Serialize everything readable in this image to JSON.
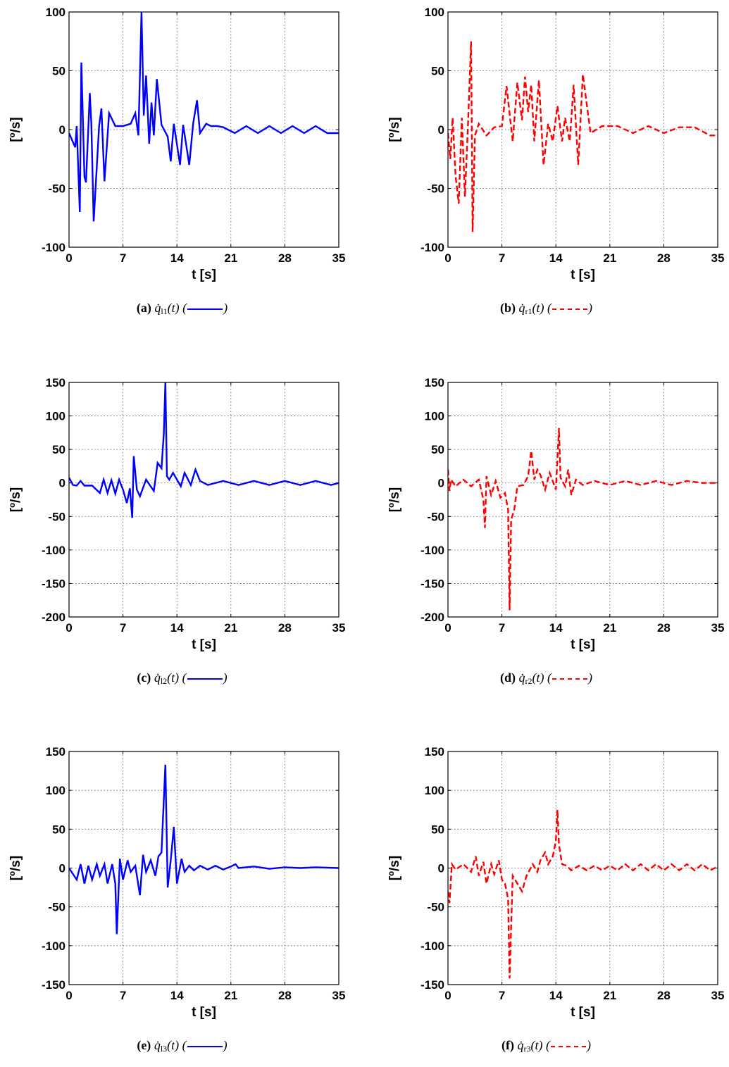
{
  "panels": [
    {
      "id": "a",
      "letter": "(a)",
      "sym": "q̇",
      "sub": "l1",
      "args": "(t)",
      "color": "#0000ff",
      "dashed": false,
      "xlabel": "t [s]",
      "ylabel": "[º/s]",
      "xticks": [
        "0",
        "7",
        "14",
        "21",
        "28",
        "35"
      ],
      "yticks": [
        "-100",
        "-50",
        "0",
        "50",
        "100"
      ]
    },
    {
      "id": "b",
      "letter": "(b)",
      "sym": "q̇",
      "sub": "r1",
      "args": "(t)",
      "color": "#ff0000",
      "dashed": true,
      "xlabel": "t [s]",
      "ylabel": "[º/s]",
      "xticks": [
        "0",
        "7",
        "14",
        "21",
        "28",
        "35"
      ],
      "yticks": [
        "-100",
        "-50",
        "0",
        "50",
        "100"
      ]
    },
    {
      "id": "c",
      "letter": "(c)",
      "sym": "q̇",
      "sub": "l2",
      "args": "(t)",
      "color": "#0000ff",
      "dashed": false,
      "xlabel": "t [s]",
      "ylabel": "[º/s]",
      "xticks": [
        "0",
        "7",
        "14",
        "21",
        "28",
        "35"
      ],
      "yticks": [
        "-200",
        "-150",
        "-100",
        "-50",
        "0",
        "50",
        "100",
        "150"
      ]
    },
    {
      "id": "d",
      "letter": "(d)",
      "sym": "q̇",
      "sub": "r2",
      "args": "(t)",
      "color": "#ff0000",
      "dashed": true,
      "xlabel": "t [s]",
      "ylabel": "[º/s]",
      "xticks": [
        "0",
        "7",
        "14",
        "21",
        "28",
        "35"
      ],
      "yticks": [
        "-200",
        "-150",
        "-100",
        "-50",
        "0",
        "50",
        "100",
        "150"
      ]
    },
    {
      "id": "e",
      "letter": "(e)",
      "sym": "q̇",
      "sub": "l3",
      "args": "(t)",
      "color": "#0000ff",
      "dashed": false,
      "xlabel": "t [s]",
      "ylabel": "[º/s]",
      "xticks": [
        "0",
        "7",
        "14",
        "21",
        "28",
        "35"
      ],
      "yticks": [
        "-150",
        "-100",
        "-50",
        "0",
        "50",
        "100",
        "150"
      ]
    },
    {
      "id": "f",
      "letter": "(f)",
      "sym": "q̇",
      "sub": "r3",
      "args": "(t)",
      "color": "#ff0000",
      "dashed": true,
      "xlabel": "t [s]",
      "ylabel": "[º/s]",
      "xticks": [
        "0",
        "7",
        "14",
        "21",
        "28",
        "35"
      ],
      "yticks": [
        "-150",
        "-100",
        "-50",
        "0",
        "50",
        "100",
        "150"
      ]
    }
  ],
  "chart_data": [
    {
      "type": "line",
      "xlim": [
        0,
        35
      ],
      "ylim": [
        -100,
        100
      ],
      "grid": true,
      "x": [
        0,
        0.8,
        1.0,
        1.4,
        1.6,
        2.0,
        2.2,
        2.7,
        2.9,
        3.2,
        3.9,
        4.2,
        4.6,
        5.2,
        6.0,
        7.0,
        8.0,
        8.6,
        9.0,
        9.4,
        9.7,
        10.0,
        10.4,
        10.7,
        11.0,
        11.4,
        12.0,
        12.8,
        13.2,
        13.6,
        14.4,
        14.8,
        15.6,
        16.1,
        16.6,
        17.0,
        17.8,
        18.4,
        19.2,
        20.0,
        21.5,
        23.0,
        24.5,
        26.0,
        27.5,
        29.0,
        30.5,
        32.0,
        33.5,
        35.0
      ],
      "y": [
        -3,
        -15,
        3,
        -70,
        57,
        -40,
        -45,
        31,
        5,
        -78,
        3,
        18,
        -44,
        14,
        3,
        3,
        5,
        14,
        -5,
        100,
        12,
        46,
        -12,
        23,
        -5,
        43,
        4,
        -6,
        -27,
        5,
        -30,
        4,
        -30,
        5,
        25,
        -3,
        5,
        3,
        3,
        2,
        -3,
        3,
        -3,
        3,
        -3,
        3,
        -3,
        3,
        -3,
        -3
      ]
    },
    {
      "type": "line",
      "xlim": [
        0,
        35
      ],
      "ylim": [
        -100,
        100
      ],
      "grid": true,
      "x": [
        0,
        0.3,
        0.6,
        1.0,
        1.4,
        1.8,
        2.2,
        2.6,
        3.0,
        3.2,
        3.5,
        4.0,
        5.0,
        6.0,
        7.0,
        7.6,
        8.4,
        9.0,
        9.6,
        10.0,
        10.4,
        10.8,
        11.2,
        11.8,
        12.4,
        13.0,
        13.6,
        14.2,
        14.8,
        15.2,
        15.8,
        16.3,
        16.9,
        17.5,
        18.5,
        20.0,
        22.0,
        24.0,
        26.0,
        28.0,
        30.0,
        32.0,
        34.0,
        35.0
      ],
      "y": [
        -3,
        -25,
        10,
        -40,
        -63,
        10,
        -57,
        5,
        75,
        -87,
        -5,
        5,
        -5,
        2,
        3,
        37,
        -10,
        40,
        8,
        45,
        15,
        38,
        -10,
        42,
        -30,
        5,
        -10,
        20,
        -10,
        10,
        -10,
        38,
        -30,
        47,
        -3,
        3,
        3,
        -3,
        3,
        -3,
        2,
        2,
        -5,
        -5
      ]
    },
    {
      "type": "line",
      "xlim": [
        0,
        35
      ],
      "ylim": [
        -200,
        150
      ],
      "grid": true,
      "x": [
        0,
        0.5,
        1.0,
        1.5,
        2.0,
        3.0,
        4.0,
        4.5,
        5.0,
        5.5,
        6.0,
        6.5,
        7.0,
        7.5,
        7.9,
        8.2,
        8.4,
        8.8,
        9.2,
        10.0,
        11.0,
        11.5,
        12.0,
        12.3,
        12.5,
        12.7,
        13.0,
        13.5,
        14.5,
        15.0,
        15.8,
        16.4,
        17.0,
        18.0,
        20.0,
        22.0,
        24.0,
        26.0,
        28.0,
        30.0,
        32.0,
        34.0,
        35.0
      ],
      "y": [
        8,
        -3,
        -4,
        3,
        -4,
        -4,
        -15,
        5,
        -15,
        4,
        -16,
        5,
        -10,
        -30,
        -8,
        -52,
        40,
        -10,
        -20,
        5,
        -12,
        30,
        22,
        75,
        150,
        10,
        5,
        15,
        -5,
        15,
        -3,
        20,
        3,
        -3,
        3,
        -3,
        3,
        -3,
        3,
        -3,
        3,
        -3,
        0
      ]
    },
    {
      "type": "line",
      "xlim": [
        0,
        35
      ],
      "ylim": [
        -200,
        150
      ],
      "grid": true,
      "x": [
        0,
        0.2,
        0.4,
        1.0,
        2.0,
        3.0,
        4.0,
        4.6,
        4.8,
        5.0,
        5.6,
        6.2,
        6.8,
        7.4,
        7.8,
        8.0,
        8.2,
        8.6,
        9.0,
        9.8,
        10.4,
        10.8,
        11.2,
        11.6,
        12.0,
        12.6,
        13.2,
        14.0,
        14.4,
        14.6,
        15.2,
        15.6,
        16.0,
        16.6,
        17.5,
        19.0,
        21.0,
        23.0,
        25.0,
        27.0,
        29.0,
        31.0,
        33.0,
        35.0
      ],
      "y": [
        20,
        -12,
        5,
        -5,
        5,
        -5,
        5,
        -25,
        -67,
        10,
        -18,
        3,
        -22,
        -15,
        -40,
        -190,
        -55,
        -40,
        -5,
        -3,
        10,
        48,
        5,
        20,
        12,
        -10,
        15,
        -10,
        82,
        8,
        -5,
        20,
        -18,
        5,
        -3,
        3,
        -3,
        3,
        -3,
        3,
        -3,
        3,
        0,
        0
      ]
    },
    {
      "type": "line",
      "xlim": [
        0,
        35
      ],
      "ylim": [
        -150,
        150
      ],
      "grid": true,
      "x": [
        0,
        1.0,
        1.5,
        2.0,
        2.5,
        3.0,
        3.6,
        4.0,
        4.6,
        5.0,
        5.6,
        6.0,
        6.2,
        6.6,
        7.0,
        7.6,
        8.0,
        8.6,
        9.2,
        9.6,
        10.0,
        10.6,
        11.2,
        11.6,
        12.0,
        12.2,
        12.5,
        12.8,
        13.2,
        13.6,
        14.0,
        14.6,
        15.0,
        15.6,
        16.2,
        17.0,
        18.0,
        19.0,
        20.0,
        21.0,
        21.6,
        22.0,
        24.0,
        26.0,
        28.0,
        30.0,
        32.0,
        35.0
      ],
      "y": [
        0,
        -15,
        5,
        -20,
        3,
        -15,
        5,
        -10,
        5,
        -20,
        5,
        -20,
        -85,
        12,
        -15,
        10,
        -5,
        3,
        -35,
        17,
        -5,
        10,
        -10,
        15,
        20,
        66,
        133,
        -25,
        10,
        53,
        -20,
        12,
        -5,
        3,
        -3,
        3,
        -2,
        3,
        -2,
        2,
        5,
        0,
        2,
        -1,
        1,
        0,
        1,
        0
      ]
    },
    {
      "type": "line",
      "xlim": [
        0,
        35
      ],
      "ylim": [
        -150,
        150
      ],
      "grid": true,
      "x": [
        0,
        0.2,
        0.5,
        1.0,
        2.0,
        3.0,
        3.6,
        4.0,
        4.6,
        5.0,
        5.6,
        6.0,
        6.6,
        7.0,
        7.4,
        7.8,
        8.0,
        8.4,
        9.0,
        9.6,
        10.2,
        11.0,
        11.6,
        12.0,
        12.6,
        13.0,
        13.6,
        14.0,
        14.2,
        14.4,
        14.8,
        15.4,
        16.0,
        17.0,
        18.0,
        19.0,
        20.0,
        21.0,
        22.0,
        23.0,
        24.0,
        25.0,
        26.0,
        27.0,
        28.0,
        29.0,
        30.0,
        31.0,
        32.0,
        33.0,
        34.0,
        35.0
      ],
      "y": [
        -30,
        -45,
        5,
        -2,
        5,
        -5,
        15,
        -10,
        8,
        -20,
        5,
        -8,
        10,
        -15,
        -20,
        -40,
        -142,
        -10,
        -20,
        -30,
        -10,
        5,
        -5,
        10,
        20,
        5,
        15,
        35,
        75,
        30,
        5,
        3,
        -3,
        3,
        -3,
        3,
        -3,
        3,
        -3,
        5,
        -3,
        5,
        -3,
        5,
        -3,
        5,
        -3,
        5,
        -3,
        5,
        -3,
        2
      ]
    }
  ]
}
